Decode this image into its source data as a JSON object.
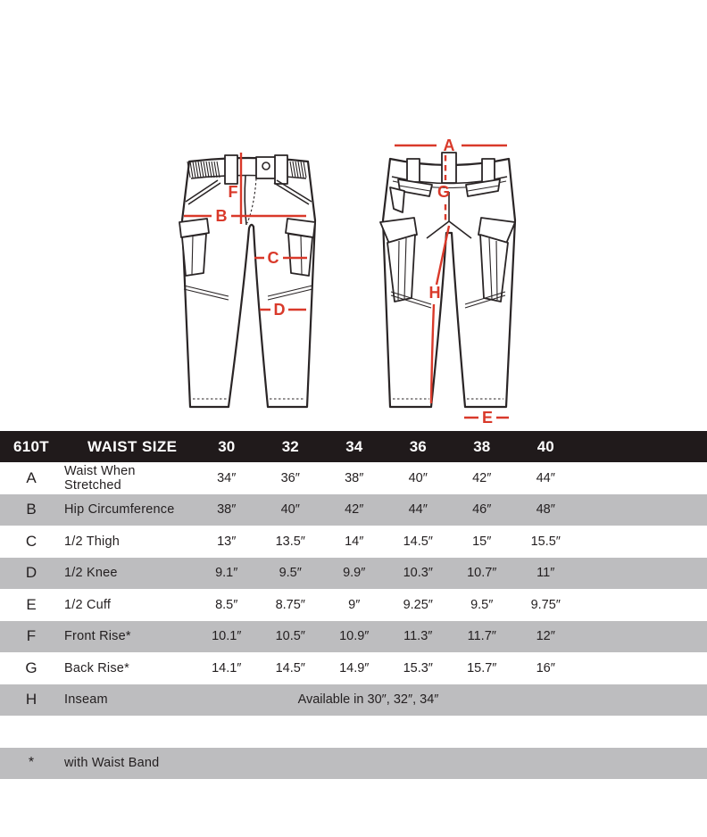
{
  "colors": {
    "accent_red": "#d9392a",
    "line_dark": "#2a2526",
    "row_gray": "#bdbdbf",
    "header_black": "#201a1b",
    "text_dark": "#231f20"
  },
  "diagram": {
    "front_labels": {
      "front_rise": "F",
      "hip": "B",
      "thigh": "C",
      "knee": "D"
    },
    "back_labels": {
      "waist": "A",
      "back_rise": "G",
      "inseam": "H",
      "cuff": "E"
    }
  },
  "table": {
    "model": "610T",
    "size_header": "WAIST SIZE",
    "sizes": [
      "30",
      "32",
      "34",
      "36",
      "38",
      "40"
    ],
    "rows": [
      {
        "letter": "A",
        "label": "Waist When Stretched",
        "values": [
          "34″",
          "36″",
          "38″",
          "40″",
          "42″",
          "44″"
        ]
      },
      {
        "letter": "B",
        "label": "Hip Circumference",
        "values": [
          "38″",
          "40″",
          "42″",
          "44″",
          "46″",
          "48″"
        ]
      },
      {
        "letter": "C",
        "label": "1/2 Thigh",
        "values": [
          "13″",
          "13.5″",
          "14″",
          "14.5″",
          "15″",
          "15.5″"
        ]
      },
      {
        "letter": "D",
        "label": "1/2 Knee",
        "values": [
          "9.1″",
          "9.5″",
          "9.9″",
          "10.3″",
          "10.7″",
          "11″"
        ]
      },
      {
        "letter": "E",
        "label": "1/2 Cuff",
        "values": [
          "8.5″",
          "8.75″",
          "9″",
          "9.25″",
          "9.5″",
          "9.75″"
        ]
      },
      {
        "letter": "F",
        "label": "Front Rise*",
        "values": [
          "10.1″",
          "10.5″",
          "10.9″",
          "11.3″",
          "11.7″",
          "12″"
        ]
      },
      {
        "letter": "G",
        "label": "Back Rise*",
        "values": [
          "14.1″",
          "14.5″",
          "14.9″",
          "15.3″",
          "15.7″",
          "16″"
        ]
      }
    ],
    "inseam_row": {
      "letter": "H",
      "label": "Inseam",
      "note": "Available in 30″, 32″, 34″"
    },
    "footnote_row": {
      "marker": "*",
      "label": "with Waist Band"
    }
  }
}
